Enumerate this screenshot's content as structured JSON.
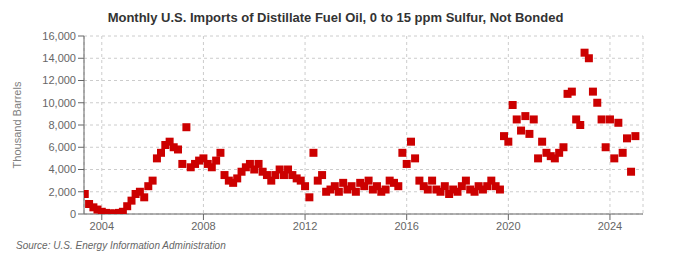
{
  "chart_data": {
    "type": "scatter",
    "title": "Monthly U.S. Imports of Distillate Fuel Oil, 0 to 15 ppm Sulfur, Not Bonded",
    "ylabel": "Thousand Barrels",
    "source": "Source: U.S. Energy Information Administration",
    "color": "#CC0000",
    "marker": "square",
    "grid": true,
    "xlim": [
      2003.3,
      2025.3
    ],
    "xticks": [
      2004,
      2008,
      2012,
      2016,
      2020,
      2024
    ],
    "ylim": [
      0,
      16000
    ],
    "yticks": [
      0,
      {
        "value": 2000,
        "label": "2,000"
      },
      {
        "value": 4000,
        "label": "4,000"
      },
      {
        "value": 6000,
        "label": "6,000"
      },
      {
        "value": 8000,
        "label": "8,000"
      },
      {
        "value": 10000,
        "label": "10,000"
      },
      {
        "value": 12000,
        "label": "12,000"
      },
      {
        "value": 14000,
        "label": "14,000"
      },
      {
        "value": 16000,
        "label": "16,000"
      }
    ],
    "x": [
      2003.33,
      2003.5,
      2003.67,
      2003.83,
      2004.0,
      2004.17,
      2004.33,
      2004.5,
      2004.67,
      2004.83,
      2005.0,
      2005.17,
      2005.33,
      2005.5,
      2005.67,
      2005.83,
      2006.0,
      2006.17,
      2006.33,
      2006.5,
      2006.67,
      2006.83,
      2007.0,
      2007.17,
      2007.33,
      2007.5,
      2007.67,
      2007.83,
      2008.0,
      2008.17,
      2008.33,
      2008.5,
      2008.67,
      2008.83,
      2009.0,
      2009.17,
      2009.33,
      2009.5,
      2009.67,
      2009.83,
      2010.0,
      2010.17,
      2010.33,
      2010.5,
      2010.67,
      2010.83,
      2011.0,
      2011.17,
      2011.33,
      2011.5,
      2011.67,
      2011.83,
      2012.0,
      2012.17,
      2012.33,
      2012.5,
      2012.67,
      2012.83,
      2013.0,
      2013.17,
      2013.33,
      2013.5,
      2013.67,
      2013.83,
      2014.0,
      2014.17,
      2014.33,
      2014.5,
      2014.67,
      2014.83,
      2015.0,
      2015.17,
      2015.33,
      2015.5,
      2015.67,
      2015.83,
      2016.0,
      2016.17,
      2016.33,
      2016.5,
      2016.67,
      2016.83,
      2017.0,
      2017.17,
      2017.33,
      2017.5,
      2017.67,
      2017.83,
      2018.0,
      2018.17,
      2018.33,
      2018.5,
      2018.67,
      2018.83,
      2019.0,
      2019.17,
      2019.33,
      2019.5,
      2019.67,
      2019.83,
      2020.0,
      2020.17,
      2020.33,
      2020.5,
      2020.67,
      2020.83,
      2021.0,
      2021.17,
      2021.33,
      2021.5,
      2021.67,
      2021.83,
      2022.0,
      2022.17,
      2022.33,
      2022.5,
      2022.67,
      2022.83,
      2023.0,
      2023.17,
      2023.33,
      2023.5,
      2023.67,
      2023.83,
      2024.0,
      2024.17,
      2024.33,
      2024.5,
      2024.67,
      2024.83,
      2025.0
    ],
    "values": [
      1800,
      900,
      600,
      400,
      200,
      100,
      50,
      50,
      100,
      200,
      700,
      1200,
      1800,
      2000,
      1500,
      2500,
      3000,
      5000,
      5500,
      6200,
      6500,
      6000,
      5800,
      4500,
      7800,
      4200,
      4500,
      4800,
      5000,
      4500,
      4200,
      4800,
      5500,
      3500,
      3000,
      2800,
      3200,
      3800,
      4200,
      4500,
      4000,
      4500,
      3800,
      3500,
      3000,
      3500,
      4000,
      3500,
      4000,
      3500,
      3200,
      3000,
      2500,
      1500,
      5500,
      3000,
      3500,
      2000,
      2200,
      2500,
      2000,
      2800,
      2200,
      2500,
      2000,
      2800,
      2500,
      3000,
      2200,
      2500,
      2000,
      2200,
      3000,
      2800,
      2500,
      5500,
      4500,
      6500,
      5000,
      3000,
      2500,
      2200,
      3000,
      2200,
      2000,
      2500,
      1800,
      2200,
      2000,
      2500,
      3000,
      2200,
      2000,
      2500,
      2200,
      2500,
      3000,
      2500,
      2200,
      7000,
      6500,
      9800,
      8500,
      7500,
      8800,
      7200,
      8500,
      5000,
      6500,
      5500,
      5200,
      5000,
      5500,
      6000,
      10800,
      11000,
      8500,
      8000,
      14500,
      14000,
      11000,
      10000,
      8500,
      6000,
      8500,
      5000,
      8200,
      5500,
      6800,
      3800,
      7000
    ]
  }
}
